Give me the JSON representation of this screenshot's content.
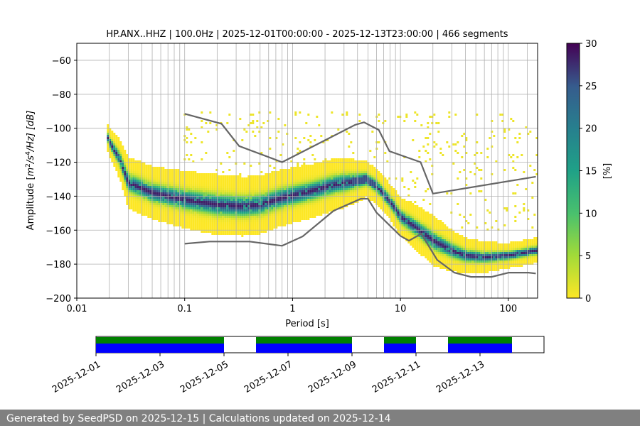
{
  "chart_data": {
    "type": "heatmap",
    "title": "HP.ANX..HHZ | 100.0Hz | 2025-12-01T00:00:00 - 2025-12-13T23:00:00 | 466 segments",
    "xlabel": "Period [s]",
    "ylabel_parts": {
      "prefix": "Amplitude [",
      "m": "m",
      "exp1": "2",
      "mid": "/s",
      "exp2": "4",
      "suffix": "/Hz] [dB]"
    },
    "x_scale": "log",
    "xlim": [
      0.01,
      180
    ],
    "ylim": [
      -200,
      -50
    ],
    "x_ticks": [
      0.01,
      0.1,
      1,
      10,
      100
    ],
    "x_tick_labels": [
      "0.01",
      "0.1",
      "1",
      "10",
      "100"
    ],
    "y_ticks": [
      -200,
      -180,
      -160,
      -140,
      -120,
      -100,
      -80,
      -60
    ],
    "y_tick_labels": [
      "−200",
      "−180",
      "−160",
      "−140",
      "−120",
      "−100",
      "−80",
      "−60"
    ],
    "grid_periods": [
      0.02,
      0.03,
      0.04,
      0.05,
      0.06,
      0.07,
      0.08,
      0.09,
      0.1,
      0.2,
      0.3,
      0.4,
      0.5,
      0.6,
      0.7,
      0.8,
      0.9,
      1,
      2,
      3,
      4,
      5,
      6,
      7,
      8,
      9,
      10,
      20,
      30,
      40,
      50,
      60,
      70,
      80,
      90,
      100,
      150
    ],
    "noise_models": [
      {
        "name": "high",
        "color": "#666666",
        "points": [
          [
            0.1,
            -91.5
          ],
          [
            0.22,
            -97.4
          ],
          [
            0.32,
            -110.5
          ],
          [
            0.8,
            -120
          ],
          [
            3.8,
            -98
          ],
          [
            4.6,
            -96.5
          ],
          [
            6.3,
            -101
          ],
          [
            7.9,
            -113.5
          ],
          [
            15.4,
            -120
          ],
          [
            20,
            -138.5
          ],
          [
            180,
            -128.5
          ]
        ]
      },
      {
        "name": "low",
        "color": "#666666",
        "points": [
          [
            0.1,
            -168
          ],
          [
            0.17,
            -166.7
          ],
          [
            0.4,
            -166.7
          ],
          [
            0.8,
            -169.2
          ],
          [
            1.24,
            -163.7
          ],
          [
            2.4,
            -148.6
          ],
          [
            4.3,
            -141.5
          ],
          [
            5.0,
            -141.5
          ],
          [
            6.0,
            -149.6
          ],
          [
            10,
            -163.4
          ],
          [
            12,
            -166.2
          ],
          [
            15.6,
            -162.1
          ],
          [
            21.9,
            -177.5
          ],
          [
            31.6,
            -185
          ],
          [
            45,
            -187.5
          ],
          [
            70,
            -187.5
          ],
          [
            101,
            -185
          ],
          [
            154,
            -185
          ],
          [
            180,
            -185.5
          ]
        ]
      }
    ],
    "mode_curve": [
      [
        0.019,
        -104
      ],
      [
        0.02,
        -108
      ],
      [
        0.025,
        -118
      ],
      [
        0.03,
        -132
      ],
      [
        0.05,
        -138
      ],
      [
        0.1,
        -142
      ],
      [
        0.2,
        -145
      ],
      [
        0.35,
        -146
      ],
      [
        0.5,
        -145
      ],
      [
        0.8,
        -141
      ],
      [
        1.5,
        -137
      ],
      [
        2.5,
        -133
      ],
      [
        4,
        -131
      ],
      [
        4.8,
        -130
      ],
      [
        6,
        -134
      ],
      [
        8,
        -143
      ],
      [
        10,
        -152
      ],
      [
        15,
        -160
      ],
      [
        20,
        -166
      ],
      [
        30,
        -172
      ],
      [
        40,
        -175
      ],
      [
        60,
        -176
      ],
      [
        100,
        -175
      ],
      [
        180,
        -172
      ]
    ],
    "spread_width": [
      [
        0.019,
        5
      ],
      [
        0.03,
        10
      ],
      [
        0.2,
        12
      ],
      [
        1,
        11
      ],
      [
        3,
        10
      ],
      [
        5,
        7
      ],
      [
        8,
        7
      ],
      [
        20,
        10
      ],
      [
        40,
        7
      ],
      [
        100,
        5
      ],
      [
        180,
        5
      ]
    ],
    "sparse_region": {
      "period_range": [
        0.1,
        180
      ],
      "db_range": [
        -160,
        -90
      ]
    },
    "colorbar": {
      "min": 0,
      "max": 30,
      "ticks": [
        0,
        5,
        10,
        15,
        20,
        25,
        30
      ],
      "label": "[%]",
      "colormap": "viridis_r"
    },
    "timeline": {
      "start": "2025-12-01",
      "end": "2025-12-15",
      "tick_labels": [
        "2025-12-01",
        "2025-12-03",
        "2025-12-05",
        "2025-12-07",
        "2025-12-09",
        "2025-12-11",
        "2025-12-13"
      ],
      "tick_dates": [
        "2025-12-01",
        "2025-12-03",
        "2025-12-05",
        "2025-12-07",
        "2025-12-09",
        "2025-12-11",
        "2025-12-13"
      ],
      "available_color": "#0000ff",
      "processed_color": "#008000",
      "available_segments": [
        [
          "2025-12-01T00:00",
          "2025-12-03T00:00"
        ],
        [
          "2025-12-03T00:00",
          "2025-12-05T00:00"
        ],
        [
          "2025-12-06T00:00",
          "2025-12-07T00:00"
        ],
        [
          "2025-12-07T00:00",
          "2025-12-09T00:00"
        ],
        [
          "2025-12-10T00:00",
          "2025-12-11T00:00"
        ],
        [
          "2025-12-12T00:00",
          "2025-12-14T00:00"
        ]
      ],
      "processed_segments": [
        [
          "2025-12-01T00:00",
          "2025-12-05T00:00"
        ],
        [
          "2025-12-06T00:00",
          "2025-12-09T00:00"
        ],
        [
          "2025-12-10T00:00",
          "2025-12-11T00:00"
        ],
        [
          "2025-12-12T00:00",
          "2025-12-14T00:00"
        ]
      ]
    }
  },
  "footer": {
    "text": "Generated by SeedPSD on 2025-12-15 | Calculations updated on 2025-12-14"
  }
}
